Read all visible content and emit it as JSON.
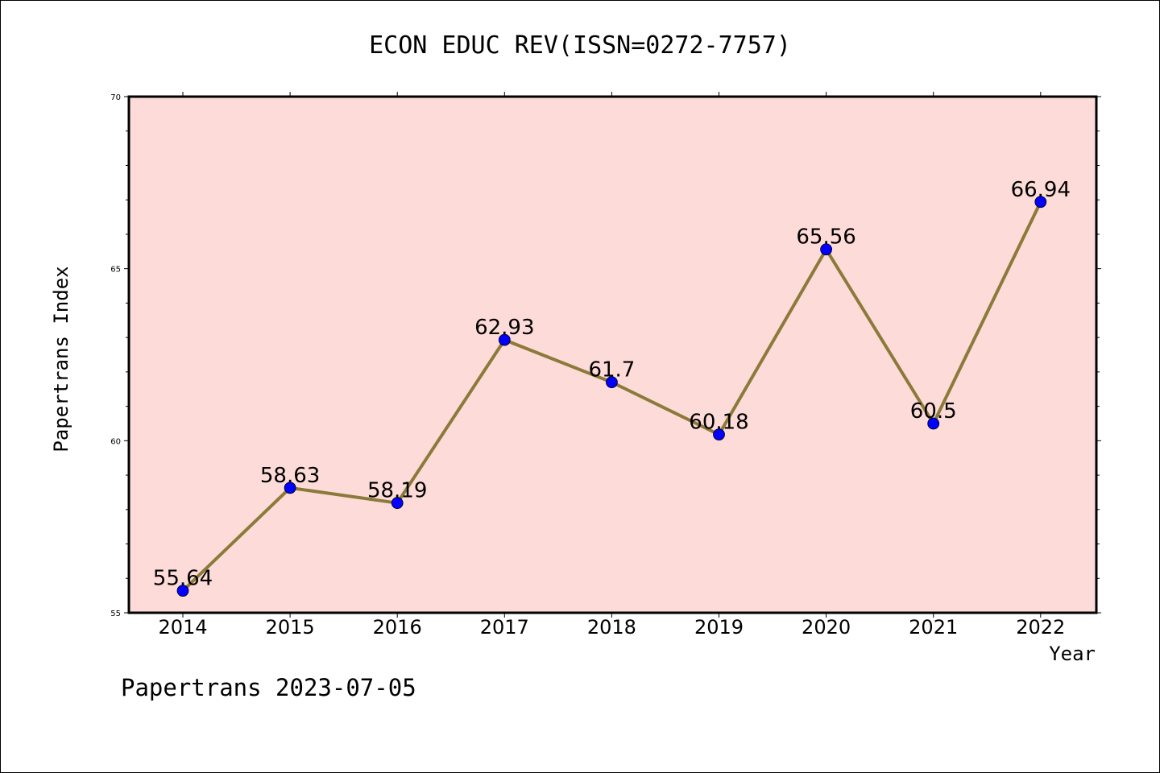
{
  "chart_data": {
    "type": "line",
    "title": "ECON EDUC REV(ISSN=0272-7757)",
    "xlabel": "Year",
    "ylabel": "Papertrans Index",
    "categories": [
      "2014",
      "2015",
      "2016",
      "2017",
      "2018",
      "2019",
      "2020",
      "2021",
      "2022"
    ],
    "series": [
      {
        "values": [
          55.64,
          58.63,
          58.19,
          62.93,
          61.7,
          60.18,
          65.56,
          60.5,
          66.94
        ],
        "labels": [
          "55.64",
          "58.63",
          "58.19",
          "62.93",
          "61.7",
          "60.18",
          "65.56",
          "60.5",
          "66.94"
        ],
        "line_color": "#8b7a3a",
        "marker_color": "#0000ff"
      }
    ],
    "ylim": [
      55,
      70
    ],
    "yticks": [
      "55",
      "60",
      "65",
      "70"
    ],
    "plot_background": "#fddbd8",
    "grid": false,
    "footer": "Papertrans 2023-07-05"
  }
}
